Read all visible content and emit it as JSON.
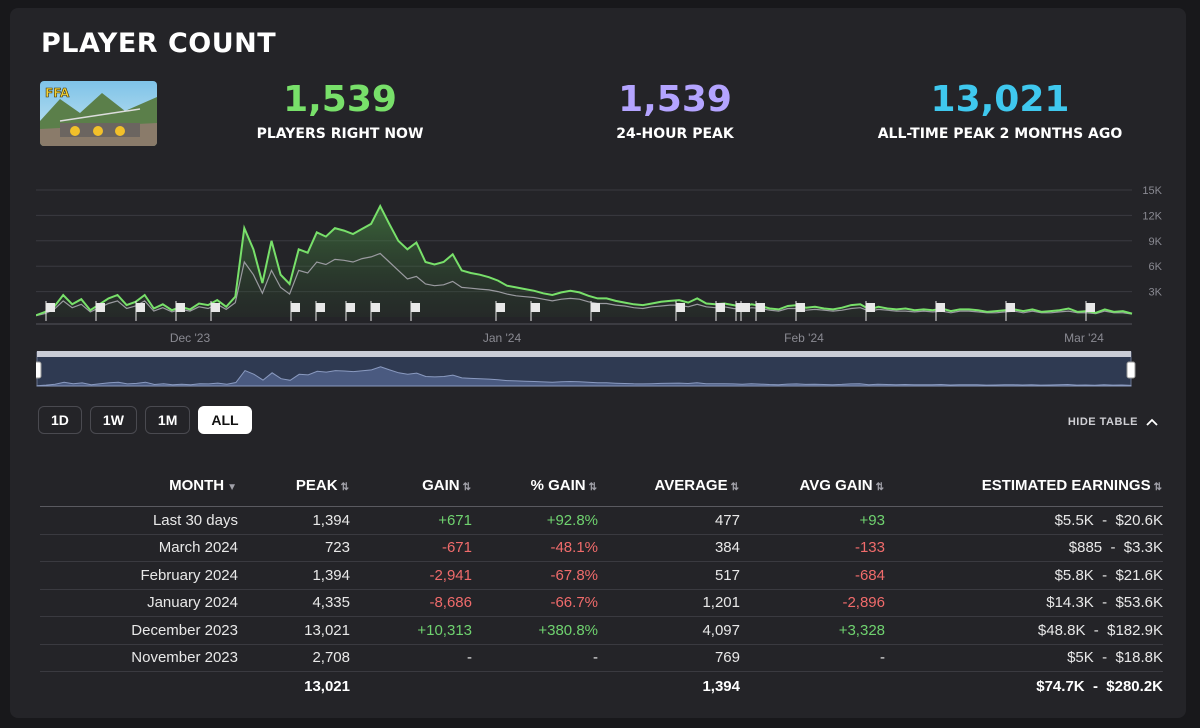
{
  "header": {
    "title": "PLAYER COUNT"
  },
  "colors": {
    "current": "#78e06a",
    "peak24": "#b4a4ff",
    "alltime": "#3fc8ee",
    "positive": "#6fd26f",
    "negative": "#f06b6b"
  },
  "stats": {
    "current": {
      "value": "1,539",
      "label": "PLAYERS RIGHT NOW"
    },
    "peak24": {
      "value": "1,539",
      "label": "24-HOUR PEAK"
    },
    "alltime": {
      "value": "13,021",
      "label": "ALL-TIME PEAK 2 MONTHS AGO"
    }
  },
  "thumbnail": {
    "label": "FFA"
  },
  "chart_data": {
    "type": "area",
    "x_ticks": [
      "Dec '23",
      "Jan '24",
      "Feb '24",
      "Mar '24"
    ],
    "y_ticks": [
      "15K",
      "12K",
      "9K",
      "6K",
      "3K"
    ],
    "ylim": [
      0,
      15000
    ],
    "series": [
      {
        "color": "#78e06a",
        "values": [
          200,
          600,
          1200,
          2600,
          1500,
          2100,
          800,
          1500,
          2200,
          2600,
          1400,
          1800,
          2600,
          1000,
          1500,
          800,
          1200,
          900,
          1600,
          1400,
          2000,
          1200,
          2400,
          10500,
          8000,
          4000,
          9000,
          5000,
          3900,
          8000,
          7600,
          10000,
          9500,
          10500,
          10200,
          9800,
          10400,
          11000,
          13100,
          11000,
          9000,
          8000,
          8800,
          6500,
          6200,
          6500,
          7400,
          5500,
          5200,
          5000,
          4700,
          4300,
          3700,
          3500,
          3300,
          3100,
          2800,
          2600,
          2900,
          3100,
          2900,
          2500,
          2200,
          2200,
          1900,
          1700,
          1500,
          1400,
          1600,
          1800,
          1900,
          2000,
          1700,
          2200,
          1600,
          1500,
          1600,
          1400,
          1200,
          1500,
          1300,
          1000,
          900,
          1300,
          1400,
          1100,
          1200,
          1000,
          900,
          1100,
          1400,
          1500,
          900,
          1200,
          1000,
          900,
          1000,
          800,
          900,
          800,
          1000,
          700,
          900,
          900,
          800,
          600,
          700,
          800,
          900,
          700,
          900,
          600,
          700,
          800,
          1000,
          600,
          700,
          500,
          900,
          600,
          700,
          400
        ]
      },
      {
        "color": "#9a9aa0",
        "values": [
          150,
          400,
          900,
          1900,
          1100,
          1500,
          600,
          1100,
          1600,
          1900,
          1000,
          1300,
          1900,
          700,
          1100,
          600,
          900,
          700,
          1200,
          1000,
          1500,
          900,
          1700,
          6500,
          5000,
          2800,
          5500,
          3500,
          2700,
          5500,
          5200,
          6500,
          6200,
          6800,
          6700,
          6500,
          6900,
          7100,
          7500,
          6500,
          5500,
          4500,
          4800,
          3900,
          3700,
          3800,
          4200,
          3500,
          3400,
          3300,
          3200,
          3000,
          2700,
          2500,
          2400,
          2300,
          2100,
          1900,
          2100,
          2200,
          2100,
          1800,
          1600,
          1600,
          1400,
          1300,
          1100,
          1000,
          1200,
          1300,
          1400,
          1400,
          1200,
          1500,
          1200,
          1100,
          1200,
          1000,
          900,
          1100,
          1000,
          800,
          700,
          1000,
          1000,
          800,
          900,
          800,
          700,
          800,
          1000,
          1100,
          700,
          900,
          800,
          700,
          700,
          600,
          700,
          600,
          700,
          500,
          700,
          700,
          600,
          500,
          500,
          600,
          700,
          500,
          700,
          500,
          500,
          600,
          700,
          500,
          500,
          400,
          700,
          500,
          500,
          350
        ]
      }
    ],
    "grid": true
  },
  "range_buttons": [
    "1D",
    "1W",
    "1M",
    "ALL"
  ],
  "active_range": "ALL",
  "hide_table_label": "HIDE TABLE",
  "table": {
    "headers": [
      "MONTH",
      "PEAK",
      "GAIN",
      "% GAIN",
      "AVERAGE",
      "AVG GAIN",
      "ESTIMATED EARNINGS"
    ],
    "rows": [
      {
        "month": "Last 30 days",
        "peak": "1,394",
        "gain": "+671",
        "pct": "+92.8%",
        "avg": "477",
        "avg_gain": "+93",
        "earnings": "$5.5K  -  $20.6K",
        "sign": "pos"
      },
      {
        "month": "March 2024",
        "peak": "723",
        "gain": "-671",
        "pct": "-48.1%",
        "avg": "384",
        "avg_gain": "-133",
        "earnings": "$885  -  $3.3K",
        "sign": "neg"
      },
      {
        "month": "February 2024",
        "peak": "1,394",
        "gain": "-2,941",
        "pct": "-67.8%",
        "avg": "517",
        "avg_gain": "-684",
        "earnings": "$5.8K  -  $21.6K",
        "sign": "neg"
      },
      {
        "month": "January 2024",
        "peak": "4,335",
        "gain": "-8,686",
        "pct": "-66.7%",
        "avg": "1,201",
        "avg_gain": "-2,896",
        "earnings": "$14.3K  -  $53.6K",
        "sign": "neg"
      },
      {
        "month": "December 2023",
        "peak": "13,021",
        "gain": "+10,313",
        "pct": "+380.8%",
        "avg": "4,097",
        "avg_gain": "+3,328",
        "earnings": "$48.8K  -  $182.9K",
        "sign": "pos"
      },
      {
        "month": "November 2023",
        "peak": "2,708",
        "gain": "-",
        "pct": "-",
        "avg": "769",
        "avg_gain": "-",
        "earnings": "$5K  -  $18.8K",
        "sign": "none"
      }
    ],
    "total": {
      "peak": "13,021",
      "avg": "1,394",
      "earnings": "$74.7K  -  $280.2K"
    }
  }
}
